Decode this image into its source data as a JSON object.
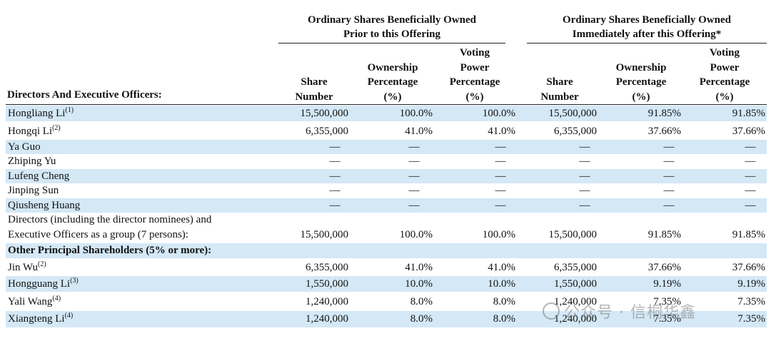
{
  "groups": [
    {
      "line1": "Ordinary Shares Beneficially Owned",
      "line2": "Prior to this Offering"
    },
    {
      "line1": "Ordinary Shares Beneficially Owned",
      "line2": "Immediately after this Offering*"
    }
  ],
  "columns": {
    "directors_header": "Directors And Executive Officers:",
    "share_number": [
      "Share",
      "Number"
    ],
    "ownership": [
      "Ownership",
      "Percentage",
      "(%)"
    ],
    "voting": [
      "Voting",
      "Power",
      "Percentage",
      "(%)"
    ]
  },
  "rows": [
    {
      "name": "Hongliang Li",
      "note": "(1)",
      "v": [
        "15,500,000",
        "100.0%",
        "100.0%",
        "15,500,000",
        "91.85%",
        "91.85%"
      ]
    },
    {
      "name": "Hongqi Li",
      "note": "(2)",
      "v": [
        "6,355,000",
        "41.0%",
        "41.0%",
        "6,355,000",
        "37.66%",
        "37.66%"
      ]
    },
    {
      "name": "Ya Guo",
      "dash": "—"
    },
    {
      "name": "Zhiping Yu",
      "dash": "—"
    },
    {
      "name": "Lufeng Cheng",
      "dash": "—"
    },
    {
      "name": "Jinping Sun",
      "dash": "—"
    },
    {
      "name": "Qiusheng Huang",
      "dash": "—"
    },
    {
      "name_line1": "Directors (including the director nominees) and",
      "name_line2": "Executive Officers as a group (7 persons):",
      "v": [
        "15,500,000",
        "100.0%",
        "100.0%",
        "15,500,000",
        "91.85%",
        "91.85%"
      ]
    },
    {
      "section": "Other Principal Shareholders (5% or more):"
    },
    {
      "name": "Jin Wu",
      "note": "(2)",
      "v": [
        "6,355,000",
        "41.0%",
        "41.0%",
        "6,355,000",
        "37.66%",
        "37.66%"
      ]
    },
    {
      "name": "Hongguang Li",
      "note": "(3)",
      "v": [
        "1,550,000",
        "10.0%",
        "10.0%",
        "1,550,000",
        "9.19%",
        "9.19%"
      ]
    },
    {
      "name": "Yali Wang",
      "note": "(4)",
      "v": [
        "1,240,000",
        "8.0%",
        "8.0%",
        "1,240,000",
        "7.35%",
        "7.35%"
      ]
    },
    {
      "name": "Xiangteng Li",
      "note": "(4)",
      "v": [
        "1,240,000",
        "8.0%",
        "8.0%",
        "1,240,000",
        "7.35%",
        "7.35%"
      ]
    }
  ],
  "watermark": "公众号 · 信桐华鑫",
  "colors": {
    "shade": "#d4e8f6",
    "text": "#111111"
  }
}
